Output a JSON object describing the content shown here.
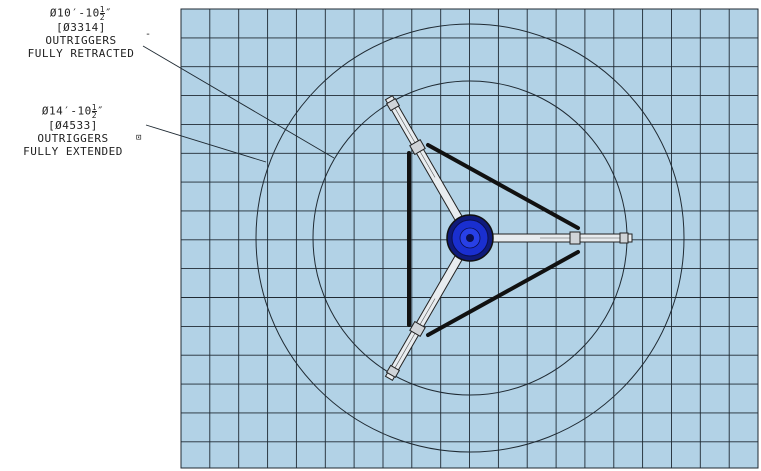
{
  "drawing": {
    "grid_color": "#b2d2e6",
    "grid_line_color": "#1f2a33",
    "hub_color": "#1a2fd0",
    "retracted_note": {
      "dimension_main": "Ø10′-10",
      "fraction_num": "1",
      "fraction_den": "2",
      "dimension_suffix": "″",
      "metric": "[Ø3314]",
      "line1": "OUTRIGGERS",
      "line2": "FULLY RETRACTED",
      "mark": "-"
    },
    "extended_note": {
      "dimension_main": "Ø14′-10",
      "fraction_num": "1",
      "fraction_den": "2",
      "dimension_suffix": "″",
      "metric": "[Ø4533]",
      "line1": "OUTRIGGERS",
      "line2": "FULLY EXTENDED",
      "mark": "⊡"
    }
  }
}
